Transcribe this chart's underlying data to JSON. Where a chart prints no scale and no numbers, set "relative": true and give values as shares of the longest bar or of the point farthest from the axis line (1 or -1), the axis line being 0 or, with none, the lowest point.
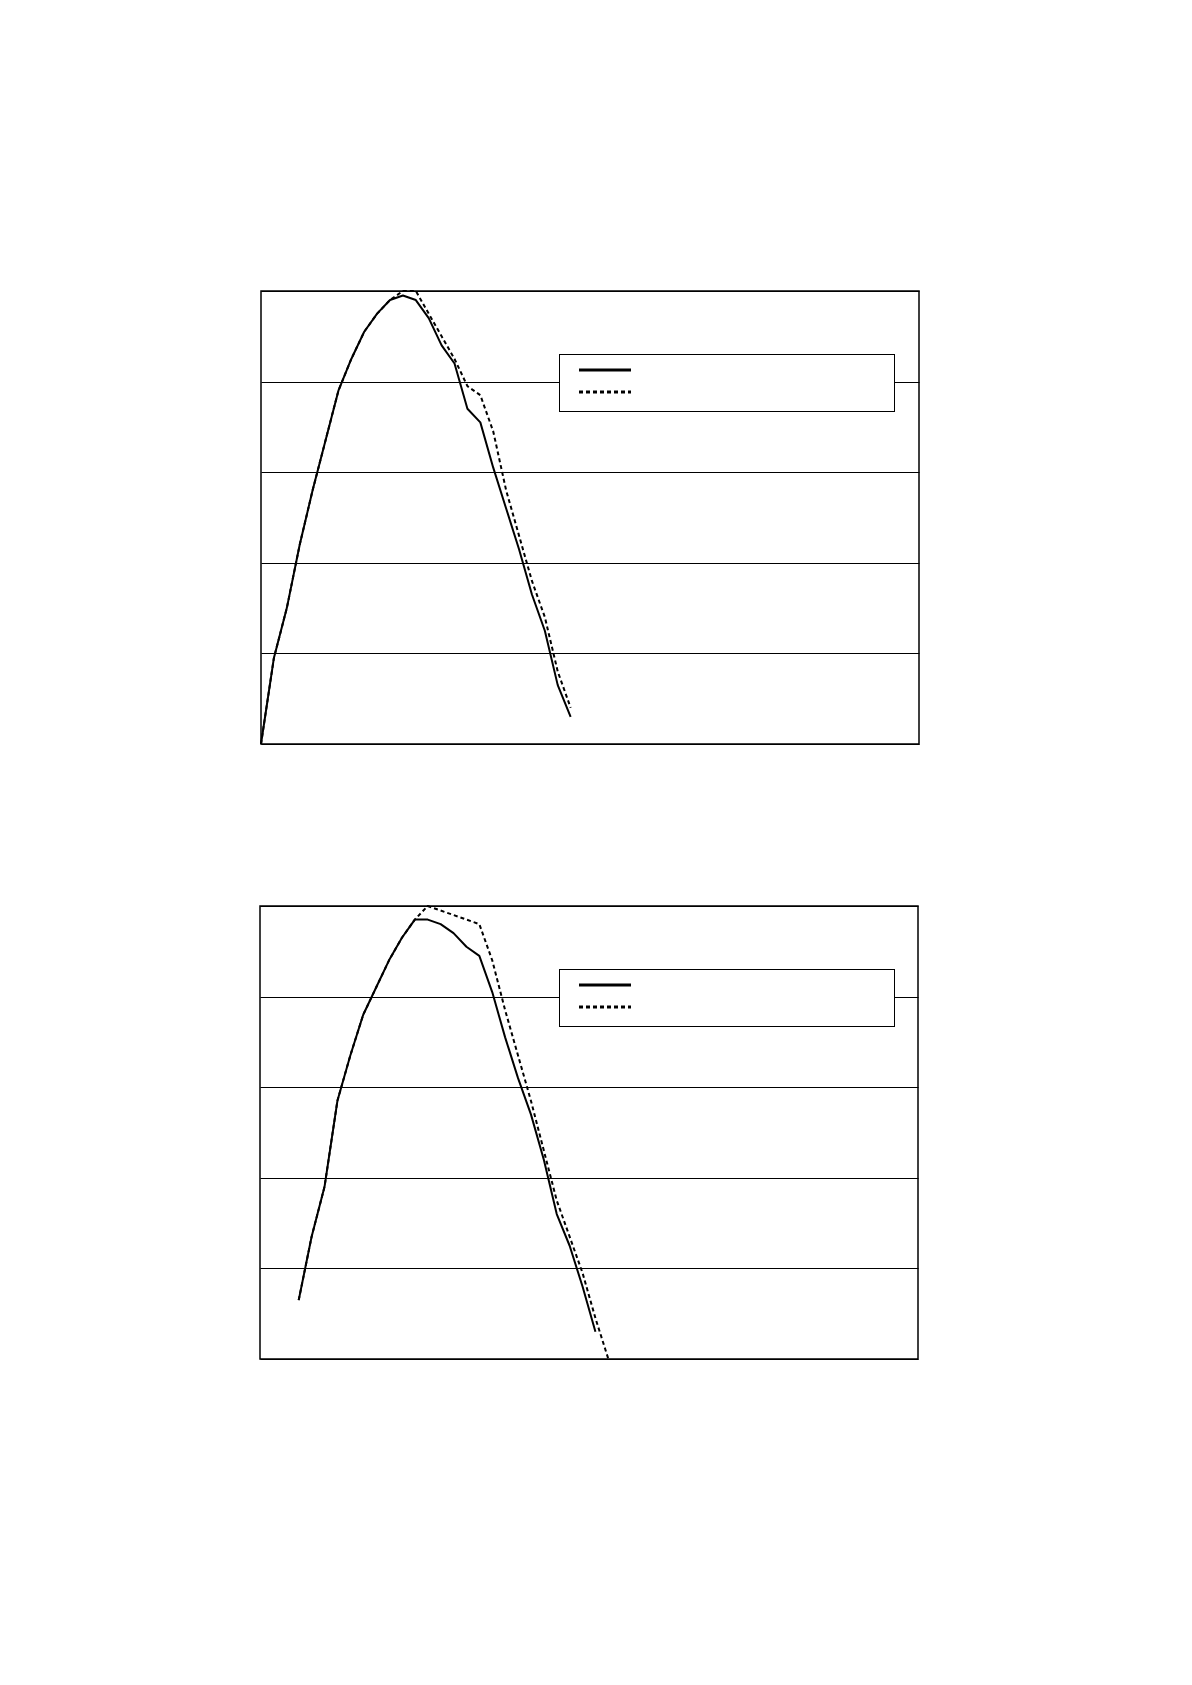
{
  "chart_data": [
    {
      "type": "line",
      "relative": true,
      "grid": "y",
      "categories": [
        null,
        null,
        null,
        null,
        null,
        null,
        null,
        null,
        null,
        null,
        null,
        null,
        null,
        null,
        null,
        null,
        null,
        null,
        null,
        null,
        null,
        null,
        null,
        null,
        null,
        null,
        null,
        null,
        null,
        null,
        null,
        null,
        null,
        null,
        null,
        null,
        null,
        null,
        null,
        null,
        null,
        null,
        null,
        null,
        null,
        null,
        null,
        null,
        null,
        null,
        null,
        null
      ],
      "series": [
        {
          "color": "#000000",
          "line_style": "solid",
          "values": [
            0,
            0.19,
            0.3,
            0.44,
            0.56,
            0.67,
            0.78,
            0.85,
            0.91,
            0.95,
            0.98,
            0.99,
            0.98,
            0.94,
            0.88,
            0.84,
            0.74,
            0.71,
            0.61,
            0.52,
            0.43,
            0.33,
            0.25,
            0.13,
            0.06,
            null,
            null,
            null,
            null,
            null,
            null,
            null,
            null,
            null,
            null,
            null,
            null,
            null,
            null,
            null,
            null,
            null,
            null,
            null,
            null,
            null,
            null,
            null,
            null,
            null,
            null,
            null
          ]
        },
        {
          "color": "#000000",
          "line_style": "dashed",
          "values": [
            0,
            0.19,
            0.3,
            0.44,
            0.56,
            0.67,
            0.78,
            0.85,
            0.91,
            0.95,
            0.98,
            1,
            1,
            0.95,
            0.9,
            0.85,
            0.79,
            0.77,
            0.69,
            0.56,
            0.46,
            0.36,
            0.28,
            0.16,
            0.08,
            null,
            null,
            null,
            null,
            null,
            null,
            null,
            null,
            null,
            null,
            null,
            null,
            null,
            null,
            null,
            null,
            null,
            null,
            null,
            null,
            null,
            null,
            null,
            null,
            null,
            null,
            null
          ]
        }
      ]
    },
    {
      "type": "line",
      "relative": true,
      "grid": "y",
      "categories": [
        null,
        null,
        null,
        null,
        null,
        null,
        null,
        null,
        null,
        null,
        null,
        null,
        null,
        null,
        null,
        null,
        null,
        null,
        null,
        null,
        null,
        null,
        null,
        null,
        null,
        null,
        null,
        null,
        null,
        null,
        null,
        null,
        null,
        null,
        null,
        null,
        null,
        null,
        null,
        null,
        null,
        null,
        null,
        null,
        null,
        null,
        null,
        null,
        null,
        null,
        null,
        null
      ],
      "series": [
        {
          "color": "#000000",
          "line_style": "solid",
          "values": [
            null,
            null,
            null,
            0.13,
            0.27,
            0.38,
            0.57,
            0.67,
            0.76,
            0.82,
            0.88,
            0.93,
            0.97,
            0.97,
            0.96,
            0.94,
            0.91,
            0.89,
            0.81,
            0.71,
            0.62,
            0.54,
            0.44,
            0.32,
            0.25,
            0.16,
            0.06,
            null,
            null,
            null,
            null,
            null,
            null,
            null,
            null,
            null,
            null,
            null,
            null,
            null,
            null,
            null,
            null,
            null,
            null,
            null,
            null,
            null,
            null,
            null,
            null,
            null
          ]
        },
        {
          "color": "#000000",
          "line_style": "dashed",
          "values": [
            null,
            null,
            null,
            0.13,
            0.27,
            0.38,
            0.57,
            0.67,
            0.76,
            0.82,
            0.88,
            0.93,
            0.97,
            1,
            0.99,
            0.98,
            0.97,
            0.96,
            0.88,
            0.77,
            0.67,
            0.57,
            0.46,
            0.35,
            0.27,
            0.19,
            0.09,
            0,
            null,
            null,
            null,
            null,
            null,
            null,
            null,
            null,
            null,
            null,
            null,
            null,
            null,
            null,
            null,
            null,
            null,
            null,
            null,
            null,
            null,
            null,
            null,
            null
          ]
        }
      ]
    }
  ]
}
